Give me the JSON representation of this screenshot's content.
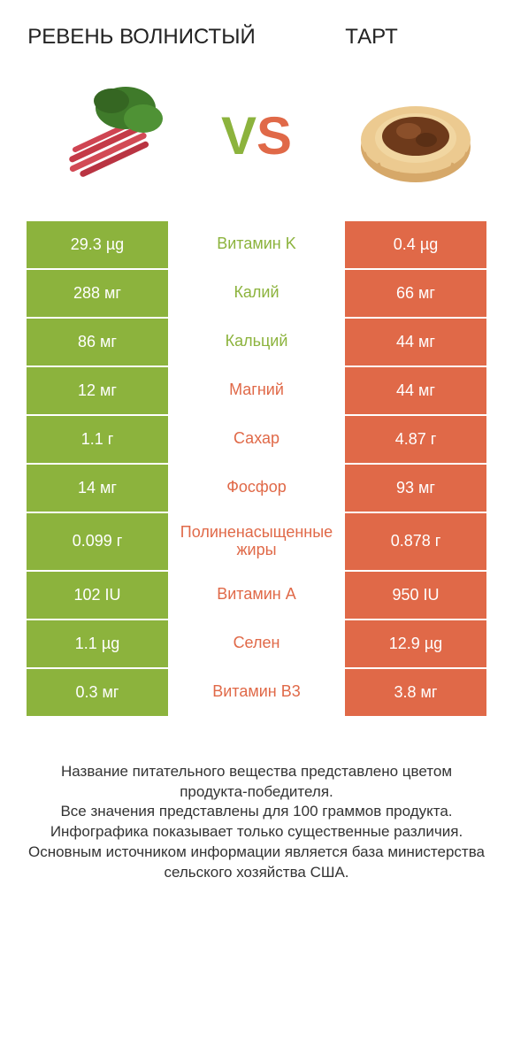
{
  "colors": {
    "green": "#8cb33d",
    "orange": "#e06948",
    "text": "#222222",
    "white": "#ffffff"
  },
  "header": {
    "left_title": "РЕВЕНЬ ВОЛНИСТЫЙ",
    "right_title": "ТАРТ"
  },
  "vs_label": "VS",
  "rows": [
    {
      "left": "29.3 µg",
      "mid": "Витамин K",
      "right": "0.4 µg",
      "winner": "left",
      "tall": false
    },
    {
      "left": "288 мг",
      "mid": "Калий",
      "right": "66 мг",
      "winner": "left",
      "tall": false
    },
    {
      "left": "86 мг",
      "mid": "Кальций",
      "right": "44 мг",
      "winner": "left",
      "tall": false
    },
    {
      "left": "12 мг",
      "mid": "Магний",
      "right": "44 мг",
      "winner": "right",
      "tall": false
    },
    {
      "left": "1.1 г",
      "mid": "Сахар",
      "right": "4.87 г",
      "winner": "right",
      "tall": false
    },
    {
      "left": "14 мг",
      "mid": "Фосфор",
      "right": "93 мг",
      "winner": "right",
      "tall": false
    },
    {
      "left": "0.099 г",
      "mid": "Полиненасыщенные жиры",
      "right": "0.878 г",
      "winner": "right",
      "tall": true
    },
    {
      "left": "102 IU",
      "mid": "Витамин A",
      "right": "950 IU",
      "winner": "right",
      "tall": false
    },
    {
      "left": "1.1 µg",
      "mid": "Селен",
      "right": "12.9 µg",
      "winner": "right",
      "tall": false
    },
    {
      "left": "0.3 мг",
      "mid": "Витамин B3",
      "right": "3.8 мг",
      "winner": "right",
      "tall": false
    }
  ],
  "footer_lines": [
    "Название питательного вещества представлено цветом продукта-победителя.",
    "Все значения представлены для 100 граммов продукта.",
    "Инфографика показывает только существенные различия.",
    "Основным источником информации является база министерства сельского хозяйства США."
  ]
}
